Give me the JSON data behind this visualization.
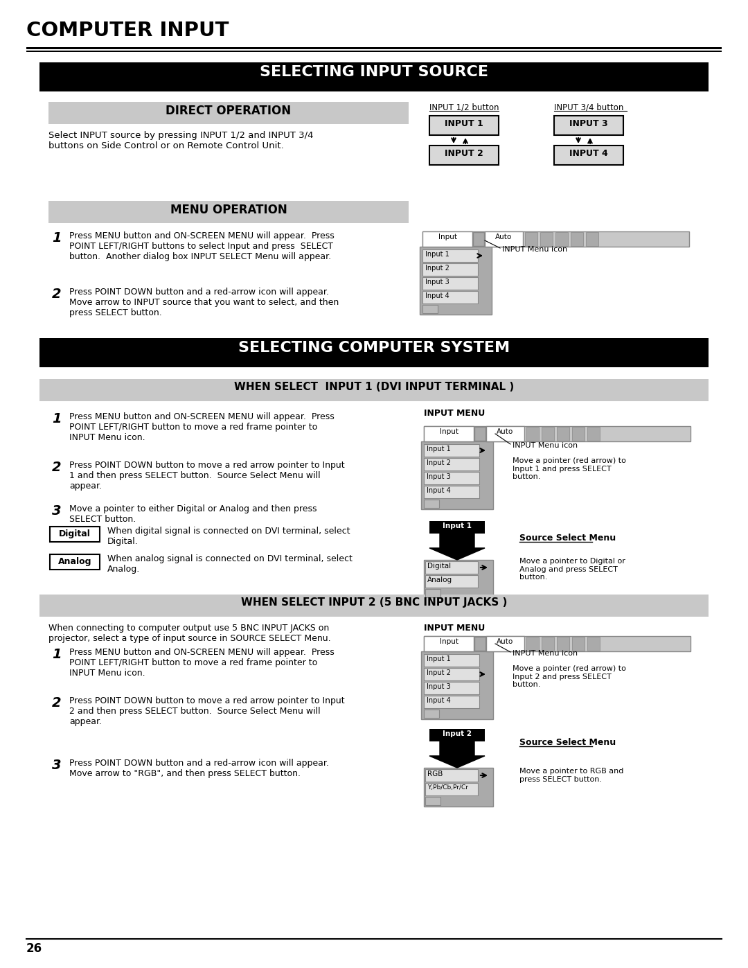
{
  "page_bg": "#ffffff",
  "page_title": "COMPUTER INPUT",
  "section1_title": "SELECTING INPUT SOURCE",
  "direct_op_title": "DIRECT OPERATION",
  "direct_op_text": "Select INPUT source by pressing INPUT 1/2 and INPUT 3/4\nbuttons on Side Control or on Remote Control Unit.",
  "input12_label": "INPUT 1/2 button",
  "input34_label": "INPUT 3/4 button",
  "menu_op_title": "MENU OPERATION",
  "menu_step1_text": "Press MENU button and ON-SCREEN MENU will appear.  Press\nPOINT LEFT/RIGHT buttons to select Input and press  SELECT\nbutton.  Another dialog box INPUT SELECT Menu will appear.",
  "menu_step2_text": "Press POINT DOWN button and a red-arrow icon will appear.\nMove arrow to INPUT source that you want to select, and then\npress SELECT button.",
  "input_menu_icon_note": "INPUT Menu icon",
  "section2_title": "SELECTING COMPUTER SYSTEM",
  "subsection1_title": "WHEN SELECT  INPUT 1 (DVI INPUT TERMINAL )",
  "input_menu_label": "INPUT MENU",
  "cs_step1_text": "Press MENU button and ON-SCREEN MENU will appear.  Press\nPOINT LEFT/RIGHT button to move a red frame pointer to\nINPUT Menu icon.",
  "cs_step2_text": "Press POINT DOWN button to move a red arrow pointer to Input\n1 and then press SELECT button.  Source Select Menu will\nappear.",
  "cs_step3_text": "Move a pointer to either Digital or Analog and then press\nSELECT button.",
  "cs_note1": "INPUT Menu icon",
  "cs_note2": "Move a pointer (red arrow) to\nInput 1 and press SELECT\nbutton.",
  "source_select_menu1": "Source Select Menu",
  "digital_label": "Digital",
  "digital_text": "When digital signal is connected on DVI terminal, select\nDigital.",
  "analog_label": "Analog",
  "analog_text": "When analog signal is connected on DVI terminal, select\nAnalog.",
  "move_note1": "Move a pointer to Digital or\nAnalog and press SELECT\nbutton.",
  "subsection2_title": "WHEN SELECT INPUT 2 (5 BNC INPUT JACKS )",
  "bnc_intro": "When connecting to computer output use 5 BNC INPUT JACKS on\nprojector, select a type of input source in SOURCE SELECT Menu.",
  "bnc_step1_text": "Press MENU button and ON-SCREEN MENU will appear.  Press\nPOINT LEFT/RIGHT button to move a red frame pointer to\nINPUT Menu icon.",
  "bnc_step2_text": "Press POINT DOWN button to move a red arrow pointer to Input\n2 and then press SELECT button.  Source Select Menu will\nappear.",
  "bnc_step3_text": "Press POINT DOWN button and a red-arrow icon will appear.\nMove arrow to \"RGB\", and then press SELECT button.",
  "bnc_note1": "INPUT Menu icon",
  "bnc_note2": "Move a pointer (red arrow) to\nInput 2 and press SELECT\nbutton.",
  "source_select_menu2": "Source Select Menu",
  "move_note2": "Move a pointer to RGB and\npress SELECT button.",
  "page_number": "26"
}
